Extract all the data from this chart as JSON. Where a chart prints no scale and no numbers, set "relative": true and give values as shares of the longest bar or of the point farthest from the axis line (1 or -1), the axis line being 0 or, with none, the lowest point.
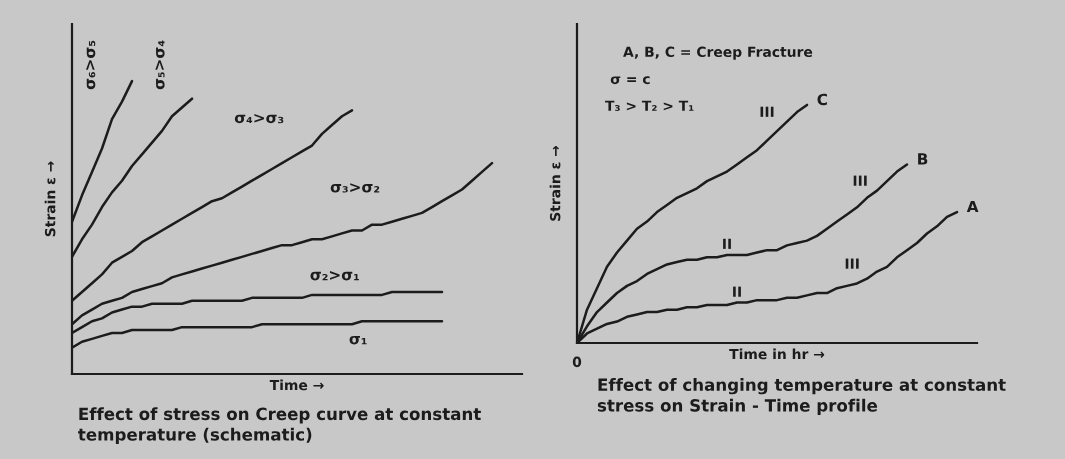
{
  "chart_data": [
    {
      "type": "line",
      "relative": true,
      "tick_labels": false,
      "title": "Effect of stress on Creep curve at constant temperature (schematic)",
      "xlabel": "Time →",
      "ylabel": "Strain ε →",
      "categories": [
        null,
        null,
        null,
        null,
        null,
        null,
        null,
        null,
        null,
        null,
        null,
        null,
        null,
        null,
        null,
        null,
        null,
        null,
        null,
        null,
        null,
        null,
        null,
        null,
        null,
        null,
        null,
        null,
        null,
        null,
        null,
        null,
        null,
        null,
        null,
        null,
        null,
        null,
        null,
        null,
        null,
        null,
        null,
        null,
        null,
        null
      ],
      "series": [
        {
          "name": "σ₁",
          "color": "#1c1c1c",
          "values": [
            0.09,
            0.11,
            0.12,
            0.13,
            0.14,
            0.14,
            0.15,
            0.15,
            0.15,
            0.15,
            0.15,
            0.16,
            0.16,
            0.16,
            0.16,
            0.16,
            0.16,
            0.16,
            0.16,
            0.17,
            0.17,
            0.17,
            0.17,
            0.17,
            0.17,
            0.17,
            0.17,
            0.17,
            0.17,
            0.18,
            0.18,
            0.18,
            0.18,
            0.18,
            0.18,
            0.18,
            0.18,
            0.18,
            null,
            null,
            null,
            null,
            null,
            null,
            null,
            null
          ]
        },
        {
          "name": "σ₂>σ₁",
          "color": "#1c1c1c",
          "values": [
            0.14,
            0.16,
            0.18,
            0.19,
            0.21,
            0.22,
            0.23,
            0.23,
            0.24,
            0.24,
            0.24,
            0.24,
            0.25,
            0.25,
            0.25,
            0.25,
            0.25,
            0.25,
            0.26,
            0.26,
            0.26,
            0.26,
            0.26,
            0.26,
            0.27,
            0.27,
            0.27,
            0.27,
            0.27,
            0.27,
            0.27,
            0.27,
            0.28,
            0.28,
            0.28,
            0.28,
            0.28,
            0.28,
            null,
            null,
            null,
            null,
            null,
            null,
            null,
            null
          ]
        },
        {
          "name": "σ₃>σ₂",
          "color": "#1c1c1c",
          "values": [
            0.17,
            0.2,
            0.22,
            0.24,
            0.25,
            0.26,
            0.28,
            0.29,
            0.3,
            0.31,
            0.33,
            0.34,
            0.35,
            0.36,
            0.37,
            0.38,
            0.39,
            0.4,
            0.41,
            0.42,
            0.43,
            0.44,
            0.44,
            0.45,
            0.46,
            0.46,
            0.47,
            0.48,
            0.49,
            0.49,
            0.51,
            0.51,
            0.52,
            0.53,
            0.54,
            0.55,
            0.57,
            0.59,
            0.61,
            0.63,
            0.66,
            0.69,
            0.72,
            null,
            null,
            null
          ]
        },
        {
          "name": "σ₄>σ₃",
          "color": "#1c1c1c",
          "values": [
            0.25,
            0.28,
            0.31,
            0.34,
            0.38,
            0.4,
            0.42,
            0.45,
            0.47,
            0.49,
            0.51,
            0.53,
            0.55,
            0.57,
            0.59,
            0.6,
            0.62,
            0.64,
            0.66,
            0.68,
            0.7,
            0.72,
            0.74,
            0.76,
            0.78,
            0.82,
            0.85,
            0.88,
            0.9,
            null,
            null,
            null,
            null,
            null,
            null,
            null,
            null,
            null,
            null,
            null,
            null,
            null,
            null,
            null,
            null,
            null
          ]
        },
        {
          "name": "σ₅>σ₄",
          "color": "#1c1c1c",
          "values": [
            0.4,
            0.46,
            0.51,
            0.57,
            0.62,
            0.66,
            0.71,
            0.75,
            0.79,
            0.83,
            0.88,
            0.91,
            0.94,
            null,
            null,
            null,
            null,
            null,
            null,
            null,
            null,
            null,
            null,
            null,
            null,
            null,
            null,
            null,
            null,
            null,
            null,
            null,
            null,
            null,
            null,
            null,
            null,
            null,
            null,
            null,
            null,
            null,
            null,
            null,
            null,
            null
          ]
        },
        {
          "name": "σ₆>σ₅",
          "color": "#1c1c1c",
          "values": [
            0.52,
            0.61,
            0.69,
            0.77,
            0.87,
            0.93,
            1.0,
            null,
            null,
            null,
            null,
            null,
            null,
            null,
            null,
            null,
            null,
            null,
            null,
            null,
            null,
            null,
            null,
            null,
            null,
            null,
            null,
            null,
            null,
            null,
            null,
            null,
            null,
            null,
            null,
            null,
            null,
            null,
            null,
            null,
            null,
            null,
            null,
            null,
            null,
            null
          ]
        }
      ]
    },
    {
      "type": "line",
      "relative": true,
      "tick_labels": false,
      "title": "Effect of changing temperature at constant stress on Strain - Time profile",
      "xlabel": "Time in hr →",
      "ylabel": "Strain ε →",
      "annotations": [
        "A, B, C = Creep Fracture",
        "σ = c",
        "T₃ > T₂ > T₁",
        "0",
        "III",
        "III",
        "III",
        "II",
        "II"
      ],
      "categories": [
        null,
        null,
        null,
        null,
        null,
        null,
        null,
        null,
        null,
        null,
        null,
        null,
        null,
        null,
        null,
        null,
        null,
        null,
        null,
        null,
        null,
        null,
        null,
        null,
        null,
        null,
        null,
        null,
        null,
        null,
        null,
        null,
        null,
        null,
        null,
        null,
        null,
        null,
        null,
        null,
        null
      ],
      "series": [
        {
          "name": "A",
          "color": "#1c1c1c",
          "values": [
            0,
            0.04,
            0.06,
            0.08,
            0.09,
            0.11,
            0.12,
            0.13,
            0.13,
            0.14,
            0.14,
            0.15,
            0.15,
            0.16,
            0.16,
            0.16,
            0.17,
            0.17,
            0.18,
            0.18,
            0.18,
            0.19,
            0.19,
            0.2,
            0.21,
            0.21,
            0.23,
            0.24,
            0.25,
            0.27,
            0.3,
            0.32,
            0.36,
            0.39,
            0.42,
            0.46,
            0.49,
            0.53,
            0.55,
            null,
            null
          ]
        },
        {
          "name": "B",
          "color": "#1c1c1c",
          "values": [
            0,
            0.07,
            0.13,
            0.17,
            0.21,
            0.24,
            0.26,
            0.29,
            0.31,
            0.33,
            0.34,
            0.35,
            0.35,
            0.36,
            0.36,
            0.37,
            0.37,
            0.37,
            0.38,
            0.39,
            0.39,
            0.41,
            0.42,
            0.43,
            0.45,
            0.48,
            0.51,
            0.54,
            0.57,
            0.61,
            0.64,
            0.68,
            0.72,
            0.75,
            null,
            null,
            null,
            null,
            null,
            null,
            null
          ]
        },
        {
          "name": "C",
          "color": "#1c1c1c",
          "values": [
            0,
            0.14,
            0.23,
            0.32,
            0.38,
            0.43,
            0.48,
            0.51,
            0.55,
            0.58,
            0.61,
            0.63,
            0.65,
            0.68,
            0.7,
            0.72,
            0.75,
            0.78,
            0.81,
            0.85,
            0.89,
            0.93,
            0.97,
            1.0,
            null,
            null,
            null,
            null,
            null,
            null,
            null,
            null,
            null,
            null,
            null,
            null,
            null,
            null,
            null,
            null,
            null
          ]
        }
      ]
    }
  ]
}
